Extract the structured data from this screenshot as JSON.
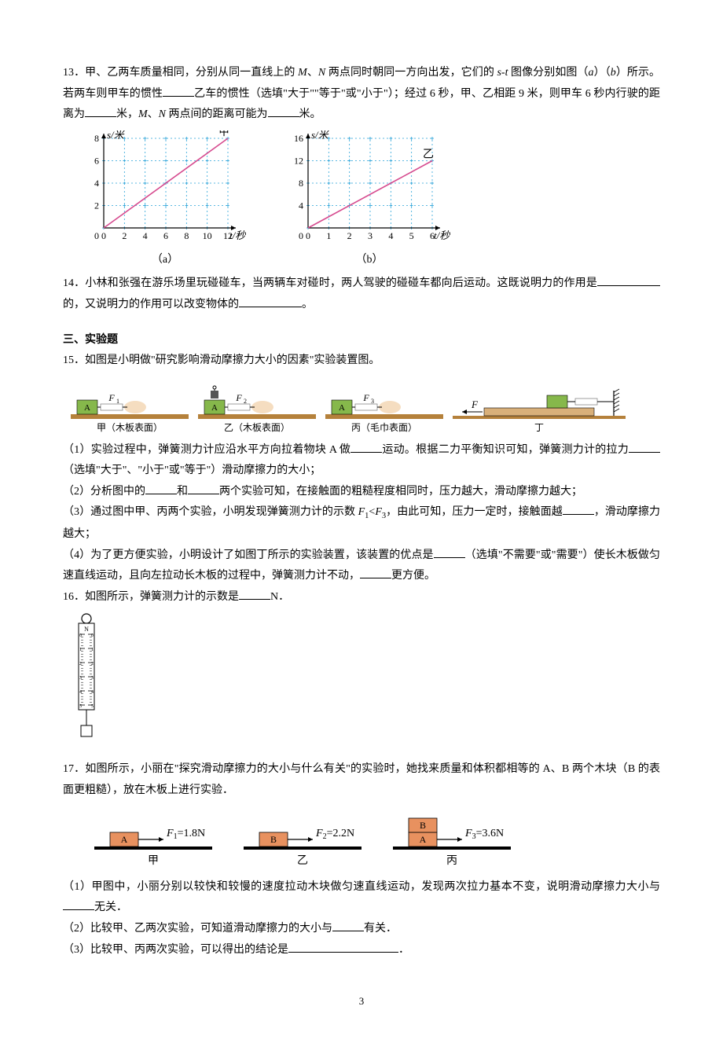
{
  "q13": {
    "num": "13．",
    "text1": "甲、乙两车质量相同，分别从同一直线上的 ",
    "M": "M",
    "comma1": "、",
    "N": "N",
    "text2": " 两点同时朝同一方向出发，它们的 ",
    "st": "s-t",
    "text3": " 图像分别如图（",
    "a": "a",
    "text4": "）（",
    "b": "b",
    "text5": "）所示。若两车则甲车的惯性",
    "text6": "乙车的惯性（选填\"大于\"\"等于\"或\"小于\"）；经过 6 秒，甲、乙相距 9 米，则甲车 6 秒内行驶的距离为",
    "text7": "米，",
    "M2": "M",
    "comma2": "、",
    "N2": "N",
    "text8": " 两点间的距离可能为",
    "text9": "米。"
  },
  "chartA": {
    "type": "line",
    "xlabel": "t/秒",
    "ylabel": "s/米",
    "xticks": [
      0,
      2,
      4,
      6,
      8,
      10,
      12
    ],
    "yticks": [
      0,
      2,
      4,
      6,
      8
    ],
    "ylim": [
      0,
      8
    ],
    "xlim": [
      0,
      12
    ],
    "line_color": "#d64b8f",
    "grid_color": "#2aa3d9",
    "axis_color": "#000000",
    "series_label": "甲",
    "caption": "（a）",
    "data": {
      "x1": 0,
      "y1": 0,
      "x2": 12,
      "y2": 8
    }
  },
  "chartB": {
    "type": "line",
    "xlabel": "t/秒",
    "ylabel": "s/米",
    "xticks": [
      0,
      1,
      2,
      3,
      4,
      5,
      6
    ],
    "yticks": [
      0,
      4,
      8,
      12,
      16
    ],
    "ylim": [
      0,
      16
    ],
    "xlim": [
      0,
      6
    ],
    "line_color": "#d64b8f",
    "grid_color": "#2aa3d9",
    "axis_color": "#000000",
    "series_label": "乙",
    "caption": "（b）",
    "data": {
      "x1": 0,
      "y1": 0,
      "x2": 6,
      "y2": 12
    }
  },
  "q14": {
    "num": "14．",
    "text1": "小林和张强在游乐场里玩碰碰车，当两辆车对碰时，两人驾驶的碰碰车都向后运动。这既说明力的作用是",
    "text2": "的，又说明力的作用可以改变物体的",
    "text3": "。"
  },
  "section3": "三、实验题",
  "q15": {
    "num": "15．",
    "intro": "如图是小明做\"研究影响滑动摩擦力大小的因素\"实验装置图。",
    "setups": [
      {
        "block": "A",
        "force": "F",
        "sub": "1",
        "surface": "甲（木板表面）",
        "weight": false
      },
      {
        "block": "A",
        "force": "F",
        "sub": "2",
        "surface": "乙（木板表面）",
        "weight": true
      },
      {
        "block": "A",
        "force": "F",
        "sub": "3",
        "surface": "丙（毛巾表面）",
        "weight": false
      }
    ],
    "setupD": {
      "force": "F",
      "label": "丁"
    },
    "colors": {
      "block": "#86b84b",
      "board": "#b5813b",
      "towel": "#b5813b",
      "hand": "#f5ddc0",
      "gauge": "#c0c0c0"
    },
    "p1a": "（1）实验过程中，弹簧测力计应沿水平方向拉着物块 A 做",
    "p1b": "运动。根据二力平衡知识可知，弹簧测力计的拉力",
    "p1c": "（选填\"大于\"、\"小于\"或\"等于\"）滑动摩擦力的大小；",
    "p2a": "（2）分析图中的",
    "p2b": "和",
    "p2c": "两个实验可知，在接触面的粗糙程度相同时，压力越大，滑动摩擦力越大；",
    "p3a": "（3）通过图中甲、丙两个实验，小明发现弹簧测力计的示数 ",
    "F1": "F",
    "sub1": "1",
    "lt": "<",
    "F3": "F",
    "sub3": "3",
    "p3b": "，由此可知，压力一定时，接触面越",
    "p3c": "，滑动摩擦力越大；",
    "p4a": "（4）为了更方便实验，小明设计了如图丁所示的实验装置，该装置的优点是",
    "p4b": "（选填\"不需要\"或\"需要\"）使长木板做匀速直线运动，且向左拉动长木板的过程中，弹簧测力计不动，",
    "p4c": "更方便。"
  },
  "q16": {
    "num": "16．",
    "text1": "如图所示，弹簧测力计的示数是",
    "text2": "N．",
    "gauge": {
      "range_min": 0,
      "range_max": 5,
      "major_step": 1,
      "width": 28,
      "height": 120,
      "body_color": "#ffffff",
      "scale_color": "#000000"
    }
  },
  "q17": {
    "num": "17．",
    "intro1": "如图所示，小丽在\"探究滑动摩擦力的大小与什么有关\"的实验时，她找来质量和体积都相等的 A、B 两个木块（B 的表面更粗糙），放在木板上进行实验．",
    "trials": [
      {
        "blocks": [
          "A"
        ],
        "F": "F",
        "sub": "1",
        "val": "=1.8N",
        "label": "甲"
      },
      {
        "blocks": [
          "B"
        ],
        "F": "F",
        "sub": "2",
        "val": "=2.2N",
        "label": "乙"
      },
      {
        "blocks": [
          "B",
          "A"
        ],
        "F": "F",
        "sub": "3",
        "val": "=3.6N",
        "label": "丙"
      }
    ],
    "colors": {
      "blockA": "#e8915f",
      "blockB": "#e8915f",
      "board": "#333333"
    },
    "p1a": "（1）甲图中，小丽分别以较快和较慢的速度拉动木块做匀速直线运动，发现两次拉力基本不变，说明滑动摩擦力大小与",
    "p1b": "无关．",
    "p2a": "（2）比较甲、乙两次实验，可知道滑动摩擦力的大小与",
    "p2b": "有关．",
    "p3a": "（3）比较甲、丙两次实验，可以得出的结论是",
    "p3b": "．"
  },
  "pageNumber": "3"
}
